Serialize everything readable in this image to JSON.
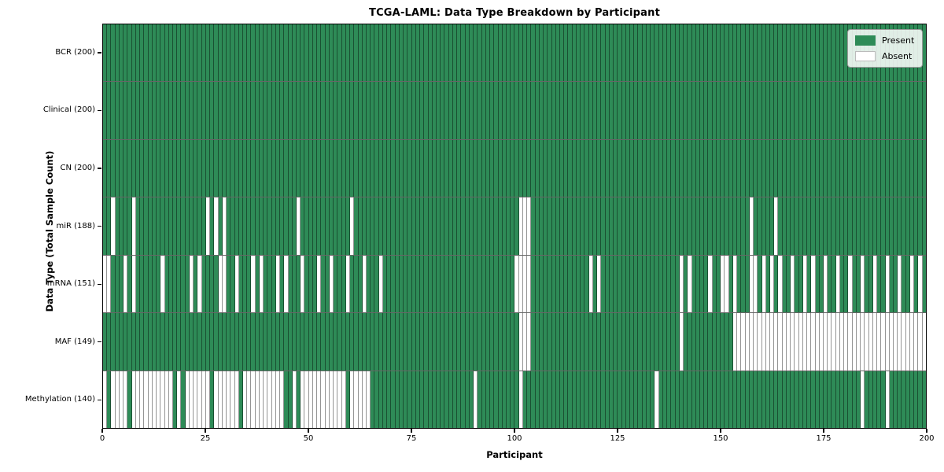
{
  "chart_data": {
    "type": "heatmap",
    "title": "TCGA-LAML: Data Type Breakdown by Participant",
    "xlabel": "Participant",
    "ylabel": "Data Type (Total Sample Count)",
    "n_participants": 200,
    "x_ticks": [
      0,
      25,
      50,
      75,
      100,
      125,
      150,
      175,
      200
    ],
    "xlim": [
      0,
      200
    ],
    "grid": "cell-borders",
    "legend_position": "upper right",
    "colors": {
      "present": "#2e8b57",
      "absent": "#ffffff"
    },
    "legend": [
      {
        "key": "present",
        "label": "Present"
      },
      {
        "key": "absent",
        "label": "Absent"
      }
    ],
    "rows": [
      {
        "name": "BCR",
        "label": "BCR (200)",
        "total": 200,
        "absent": []
      },
      {
        "name": "Clinical",
        "label": "Clinical (200)",
        "total": 200,
        "absent": []
      },
      {
        "name": "CN",
        "label": "CN (200)",
        "total": 200,
        "absent": []
      },
      {
        "name": "miR",
        "label": "miR (188)",
        "total": 188,
        "absent": [
          2,
          7,
          25,
          27,
          29,
          47,
          60,
          101,
          102,
          103,
          157,
          163
        ]
      },
      {
        "name": "mRNA",
        "label": "mRNA (151)",
        "total": 151,
        "absent": [
          0,
          1,
          5,
          7,
          14,
          21,
          23,
          28,
          29,
          32,
          36,
          38,
          42,
          44,
          48,
          52,
          55,
          59,
          63,
          67,
          100,
          101,
          102,
          103,
          118,
          120,
          140,
          142,
          147,
          150,
          151,
          153,
          157,
          158,
          160,
          162,
          164,
          167,
          170,
          172,
          175,
          178,
          181,
          184,
          187,
          190,
          193,
          196,
          198
        ]
      },
      {
        "name": "MAF",
        "label": "MAF (149)",
        "total": 149,
        "absent": [
          101,
          102,
          103,
          140,
          153,
          154,
          155,
          156,
          157,
          158,
          159,
          160,
          161,
          162,
          163,
          164,
          165,
          166,
          167,
          168,
          169,
          170,
          171,
          172,
          173,
          174,
          175,
          176,
          177,
          178,
          179,
          180,
          181,
          182,
          183,
          184,
          185,
          186,
          187,
          188,
          189,
          190,
          191,
          192,
          193,
          194,
          195,
          196,
          197,
          198,
          199
        ]
      },
      {
        "name": "Methylation",
        "label": "Methylation (140)",
        "total": 140,
        "absent": [
          0,
          2,
          3,
          4,
          5,
          7,
          8,
          9,
          10,
          11,
          12,
          13,
          14,
          15,
          16,
          18,
          20,
          21,
          22,
          23,
          24,
          25,
          27,
          28,
          29,
          30,
          31,
          32,
          34,
          35,
          36,
          37,
          38,
          39,
          40,
          41,
          42,
          43,
          46,
          48,
          49,
          50,
          51,
          52,
          53,
          54,
          55,
          56,
          57,
          58,
          60,
          61,
          62,
          63,
          64,
          90,
          101,
          134,
          184,
          190
        ]
      }
    ]
  }
}
